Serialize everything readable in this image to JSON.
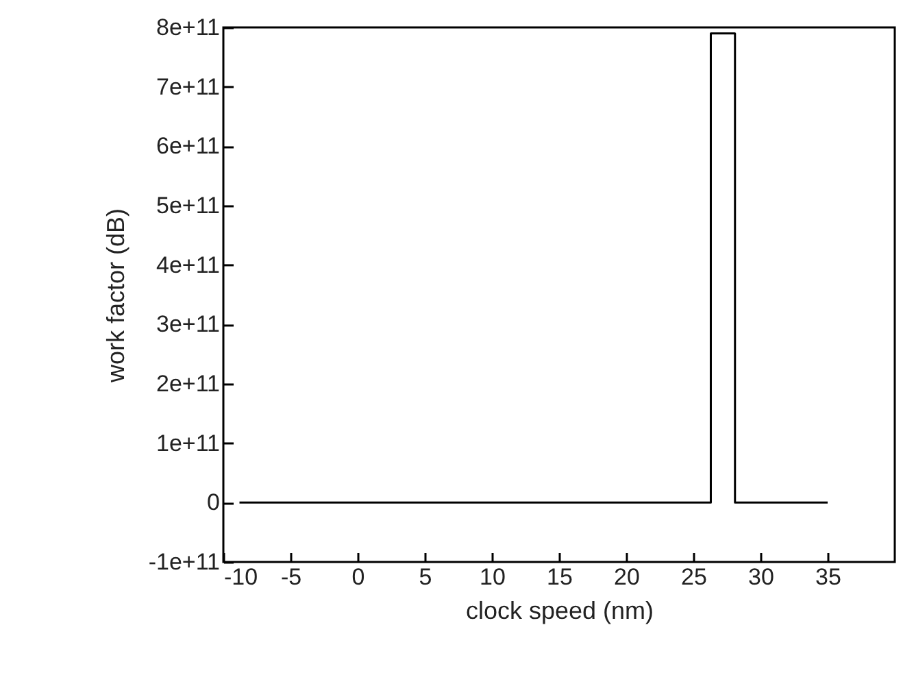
{
  "chart_data": {
    "type": "line",
    "xlabel": "clock speed (nm)",
    "ylabel": "work factor (dB)",
    "x": [
      -8.8,
      26.3,
      26.3,
      28.1,
      28.1,
      35
    ],
    "series": [
      {
        "color": "#000000",
        "values": [
          0,
          0,
          790000000000.0,
          790000000000.0,
          0,
          0
        ]
      }
    ],
    "xlim": [
      -10,
      40
    ],
    "xticks": [
      -10,
      -5,
      0,
      5,
      10,
      15,
      20,
      25,
      30,
      35
    ],
    "ylim": [
      -100000000000.0,
      800000000000.0
    ],
    "yticks": [
      {
        "value": -100000000000.0,
        "label": "-1e+11"
      },
      {
        "value": 0,
        "label": "0"
      },
      {
        "value": 100000000000.0,
        "label": "1e+11"
      },
      {
        "value": 200000000000.0,
        "label": "2e+11"
      },
      {
        "value": 300000000000.0,
        "label": "3e+11"
      },
      {
        "value": 400000000000.0,
        "label": "4e+11"
      },
      {
        "value": 500000000000.0,
        "label": "5e+11"
      },
      {
        "value": 600000000000.0,
        "label": "6e+11"
      },
      {
        "value": 700000000000.0,
        "label": "7e+11"
      },
      {
        "value": 800000000000.0,
        "label": "8e+11"
      }
    ],
    "grid": false,
    "marker": "none",
    "line_style": "solid"
  }
}
